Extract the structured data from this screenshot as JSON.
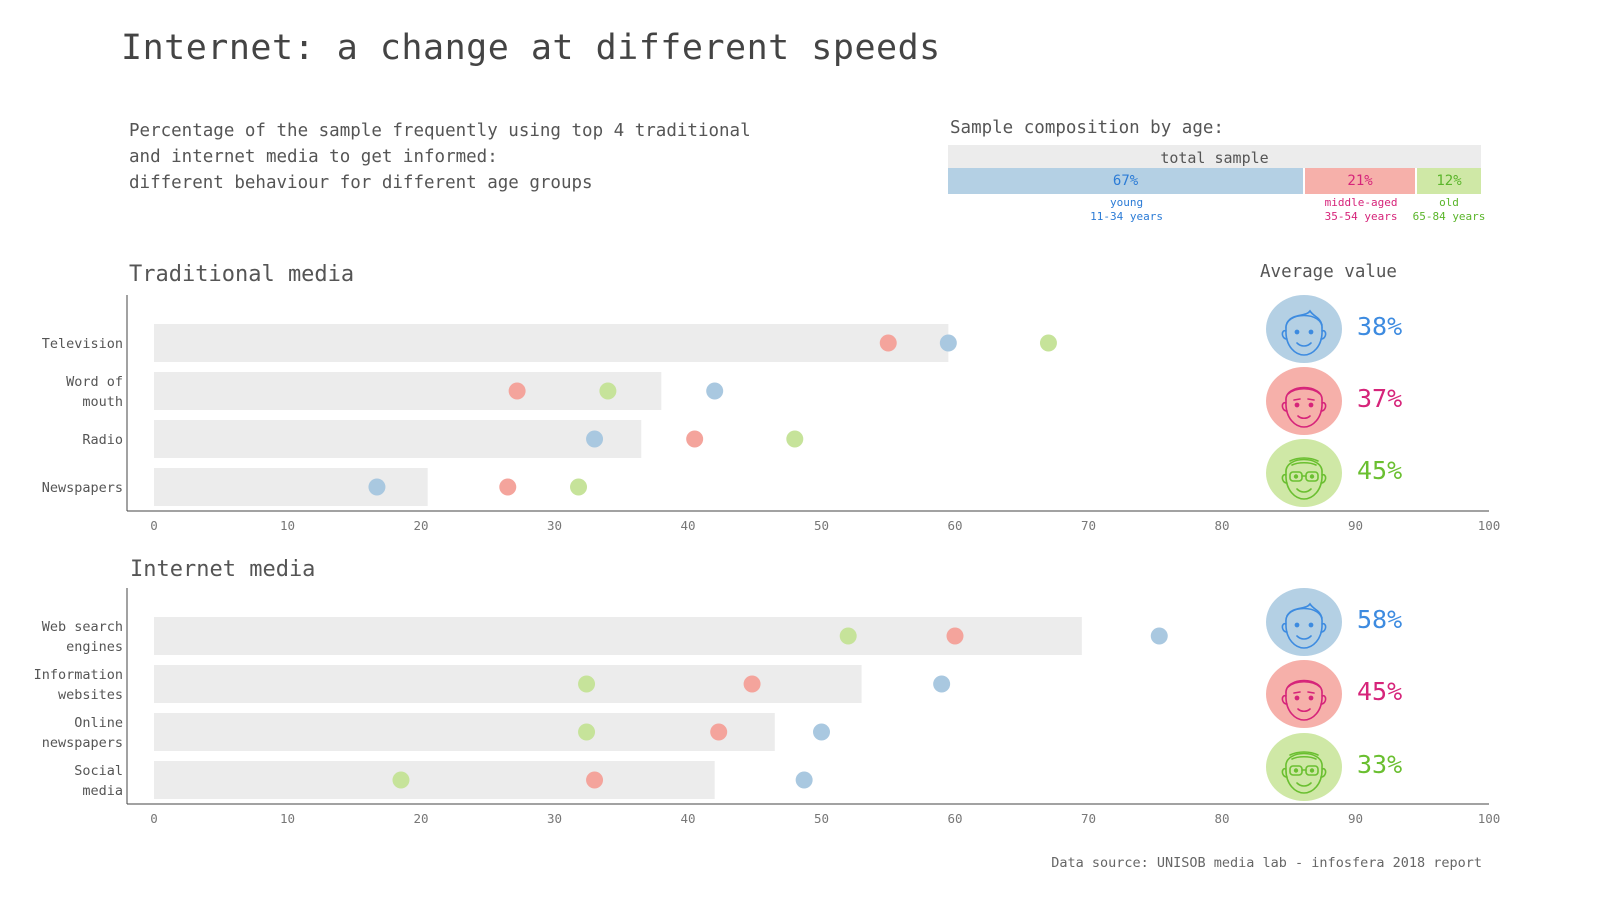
{
  "title": "Internet: a change at different speeds",
  "subtitle_lines": [
    "Percentage of the sample frequently using top 4 traditional",
    "and internet media to get informed:",
    "different behaviour for different age groups"
  ],
  "composition": {
    "title": "Sample composition by age:",
    "total_label": "total sample",
    "groups": [
      {
        "pct": 67,
        "pct_label": "67%",
        "name": "young",
        "range": "11-34 years",
        "fill": "#b4d0e4",
        "text_color": "#2b7bd6"
      },
      {
        "pct": 21,
        "pct_label": "21%",
        "name": "middle-aged",
        "range": "35-54 years",
        "fill": "#f6b0aa",
        "text_color": "#d6247a"
      },
      {
        "pct": 12,
        "pct_label": "12%",
        "name": "old",
        "range": "65-84 years",
        "fill": "#cfe8a6",
        "text_color": "#5ab52a"
      }
    ]
  },
  "average_title": "Average value",
  "source": "Data source: UNISOB media lab - infosfera 2018 report",
  "colors": {
    "young": "#a9c8e0",
    "middle": "#f4a49c",
    "old": "#c6e39a",
    "bar": "#ececec"
  },
  "chart_data": [
    {
      "type": "dot-over-bar",
      "title": "Traditional media",
      "xlim": [
        0,
        100
      ],
      "xticks": [
        0,
        10,
        20,
        30,
        40,
        50,
        60,
        70,
        80,
        90,
        100
      ],
      "categories": [
        [
          "Television"
        ],
        [
          "Word of",
          "mouth"
        ],
        [
          "Radio"
        ],
        [
          "Newspapers"
        ]
      ],
      "bar_values": [
        59.5,
        38,
        36.5,
        20.5
      ],
      "series": [
        {
          "name": "young",
          "values": [
            59.5,
            42,
            33,
            16.7
          ]
        },
        {
          "name": "middle-aged",
          "values": [
            55,
            27.2,
            40.5,
            26.5
          ]
        },
        {
          "name": "old",
          "values": [
            67,
            34,
            48,
            31.8
          ]
        }
      ],
      "averages": [
        {
          "group": "young",
          "label": "38%",
          "color": "#3d8be0",
          "fill": "#b4d0e4",
          "face": "young-face-icon"
        },
        {
          "group": "middle-aged",
          "label": "37%",
          "color": "#d6247a",
          "fill": "#f6b0aa",
          "face": "middle-face-icon"
        },
        {
          "group": "old",
          "label": "45%",
          "color": "#6abf30",
          "fill": "#cfe8a6",
          "face": "old-face-icon"
        }
      ]
    },
    {
      "type": "dot-over-bar",
      "title": "Internet media",
      "xlim": [
        0,
        100
      ],
      "xticks": [
        0,
        10,
        20,
        30,
        40,
        50,
        60,
        70,
        80,
        90,
        100
      ],
      "categories": [
        [
          "Web search",
          "engines"
        ],
        [
          "Information",
          "websites"
        ],
        [
          "Online",
          "newspapers"
        ],
        [
          "Social",
          "media"
        ]
      ],
      "bar_values": [
        69.5,
        53,
        46.5,
        42
      ],
      "series": [
        {
          "name": "young",
          "values": [
            75.3,
            59,
            50,
            48.7
          ]
        },
        {
          "name": "middle-aged",
          "values": [
            60,
            44.8,
            42.3,
            33
          ]
        },
        {
          "name": "old",
          "values": [
            52,
            32.4,
            32.4,
            18.5
          ]
        }
      ],
      "averages": [
        {
          "group": "young",
          "label": "58%",
          "color": "#3d8be0",
          "fill": "#b4d0e4",
          "face": "young-face-icon"
        },
        {
          "group": "middle-aged",
          "label": "45%",
          "color": "#d6247a",
          "fill": "#f6b0aa",
          "face": "middle-face-icon"
        },
        {
          "group": "old",
          "label": "33%",
          "color": "#6abf30",
          "fill": "#cfe8a6",
          "face": "old-face-icon"
        }
      ]
    }
  ]
}
